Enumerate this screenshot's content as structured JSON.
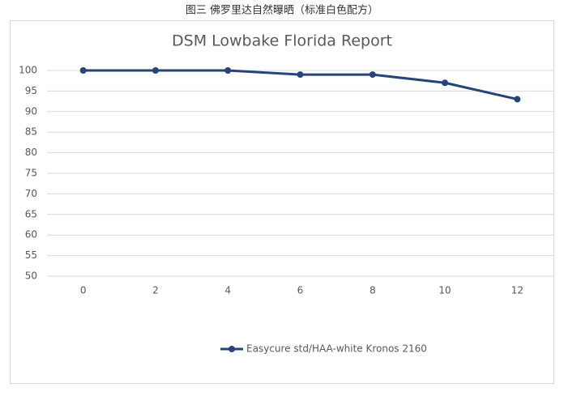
{
  "caption": "图三 佛罗里达自然曝晒（标准白色配方）",
  "chart_data": {
    "type": "line",
    "title": "DSM Lowbake Florida Report",
    "categories": [
      "0",
      "2",
      "4",
      "6",
      "8",
      "10",
      "12"
    ],
    "series": [
      {
        "name": "Easycure std/HAA-white Kronos 2160",
        "color": "#264478",
        "values": [
          100,
          100,
          100,
          99,
          99,
          97,
          93
        ]
      }
    ],
    "ylim": [
      50,
      100
    ],
    "yticks": [
      50,
      55,
      60,
      65,
      70,
      75,
      80,
      85,
      90,
      95,
      100
    ],
    "grid": true,
    "legend": "bottom"
  }
}
